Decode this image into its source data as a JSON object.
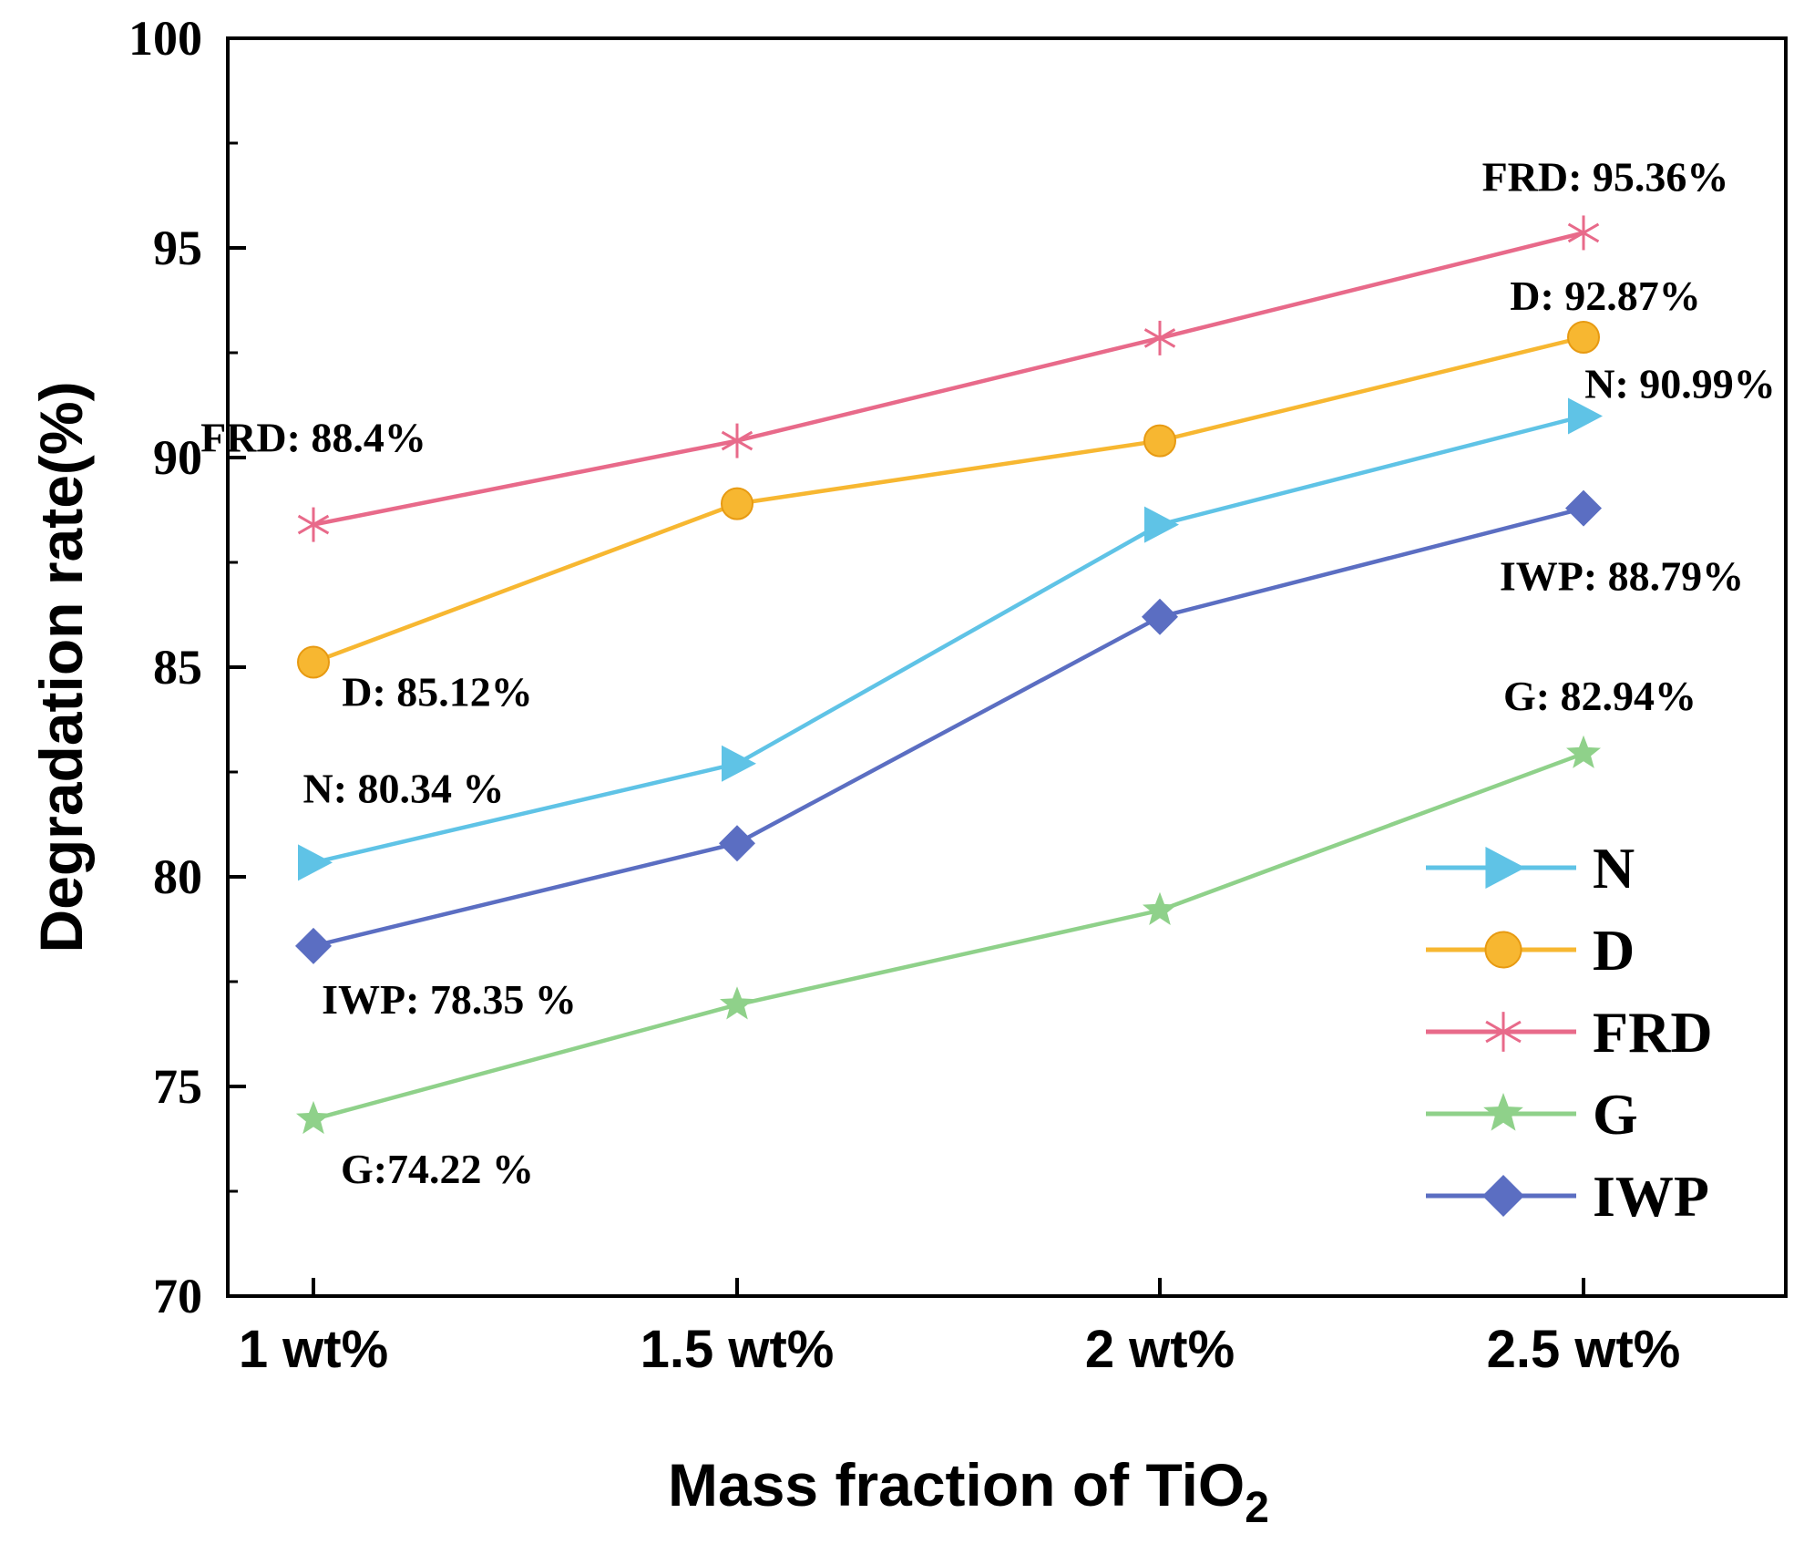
{
  "chart_data": {
    "type": "line",
    "title": "",
    "xlabel": "Mass fraction of TiO",
    "xlabel_subscript": "2",
    "ylabel": "Degradation rate(%)",
    "categories": [
      "1 wt%",
      "1.5 wt%",
      "2 wt%",
      "2.5 wt%"
    ],
    "ylim": [
      70,
      100
    ],
    "yticks": [
      70,
      75,
      80,
      85,
      90,
      95,
      100
    ],
    "grid": false,
    "legend_position": "bottom-right",
    "series": [
      {
        "name": "N",
        "marker": "triangle-right",
        "color": "#5fc3e6",
        "values": [
          80.34,
          82.7,
          88.4,
          90.99
        ]
      },
      {
        "name": "D",
        "marker": "circle",
        "color": "#f7b731",
        "values": [
          85.12,
          88.9,
          90.4,
          92.87
        ]
      },
      {
        "name": "FRD",
        "marker": "asterisk",
        "color": "#e86a8a",
        "values": [
          88.4,
          90.4,
          92.85,
          95.36
        ]
      },
      {
        "name": "G",
        "marker": "star",
        "color": "#8fd18a",
        "values": [
          74.22,
          76.95,
          79.2,
          82.94
        ]
      },
      {
        "name": "IWP",
        "marker": "diamond",
        "color": "#5b6ec2",
        "values": [
          78.35,
          80.8,
          86.2,
          88.79
        ]
      }
    ],
    "annotations": [
      {
        "text": "FRD: 88.4%",
        "category": "1 wt%",
        "value": 88.4
      },
      {
        "text": "D: 85.12%",
        "category": "1 wt%",
        "value": 85.12
      },
      {
        "text": "N: 80.34 %",
        "category": "1 wt%",
        "value": 80.34
      },
      {
        "text": "IWP: 78.35 %",
        "category": "1 wt%",
        "value": 78.35
      },
      {
        "text": "G:74.22 %",
        "category": "1 wt%",
        "value": 74.22
      },
      {
        "text": "FRD: 95.36%",
        "category": "2.5 wt%",
        "value": 95.36
      },
      {
        "text": "D: 92.87%",
        "category": "2.5 wt%",
        "value": 92.87
      },
      {
        "text": "N: 90.99%",
        "category": "2.5 wt%",
        "value": 90.99
      },
      {
        "text": "IWP: 88.79%",
        "category": "2.5 wt%",
        "value": 88.79
      },
      {
        "text": "G: 82.94%",
        "category": "2.5 wt%",
        "value": 82.94
      }
    ]
  }
}
